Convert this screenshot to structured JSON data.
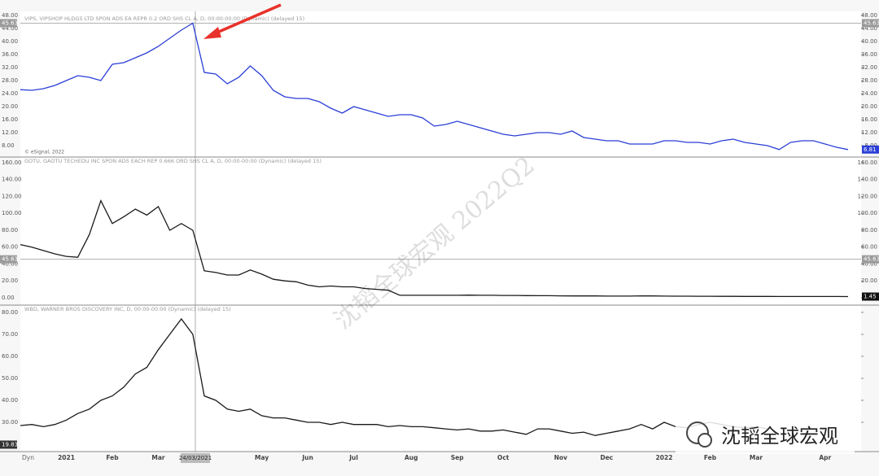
{
  "chart_data": {
    "type": "line",
    "watermark": "沈韬全球宏观 2022Q2",
    "logo_text": "沈韬全球宏观",
    "crosshair_label": "24/03/2021",
    "axis_mode": "Dyn",
    "categories": [
      null,
      null,
      null,
      null,
      "2021",
      null,
      null,
      null,
      "Feb",
      null,
      null,
      null,
      "Mar",
      null,
      null,
      null,
      "Apr",
      null,
      null,
      null,
      null,
      "May",
      null,
      null,
      null,
      "Jun",
      null,
      null,
      null,
      "Jul",
      null,
      null,
      null,
      null,
      "Aug",
      null,
      null,
      null,
      "Sep",
      null,
      null,
      null,
      "Oct",
      null,
      null,
      null,
      null,
      "Nov",
      null,
      null,
      null,
      "Dec",
      null,
      null,
      null,
      null,
      "2022",
      null,
      null,
      null,
      "Feb",
      null,
      null,
      null,
      "Mar",
      null,
      null,
      null,
      null,
      null,
      "Apr",
      null,
      null
    ],
    "panels": [
      {
        "title": "VIPS, VIPSHOP HLDGS LTD SPON ADS EA REPR 0.2 ORD SHS CL A, D, 00:00-00:00 (Dynamic) (delayed 15)",
        "copyright": "© eSignal, 2022",
        "color": "#2b3fd6",
        "values": [
          25.2,
          25,
          25.5,
          26.5,
          28,
          29.5,
          29,
          28,
          33,
          33.5,
          35,
          36.5,
          38.5,
          41,
          43.5,
          45.63,
          30.5,
          30,
          27,
          29,
          32.5,
          29.5,
          25,
          23,
          22.5,
          22.5,
          21.5,
          19.5,
          18,
          20,
          19,
          18,
          17,
          17.5,
          17.5,
          16.5,
          14,
          14.5,
          15.5,
          14.5,
          13.5,
          12.5,
          11.5,
          11,
          11.5,
          12,
          12,
          11.5,
          12.5,
          10.5,
          10,
          9.5,
          9.5,
          8.5,
          8.5,
          8.5,
          9.5,
          9.5,
          9,
          9,
          8.5,
          9.5,
          10,
          9,
          8.5,
          8,
          6.8,
          9,
          9.5,
          9.5,
          8.5,
          7.5,
          6.81
        ],
        "ylim": [
          4.5,
          48.25
        ],
        "yticks": [
          {
            "value": 8,
            "label": "8.00"
          },
          {
            "value": 12,
            "label": "12.00"
          },
          {
            "value": 16,
            "label": "16.00"
          },
          {
            "value": 20,
            "label": "20.00"
          },
          {
            "value": 24,
            "label": "24.00"
          },
          {
            "value": 28,
            "label": "28.00"
          },
          {
            "value": 32,
            "label": "32.00"
          },
          {
            "value": 36,
            "label": "36.00"
          },
          {
            "value": 40,
            "label": "40.00"
          },
          {
            "value": 44,
            "label": "44.00"
          },
          {
            "value": 48,
            "label": "48.00"
          }
        ],
        "tick_sides": "both",
        "price_markers": [
          {
            "value": 45.63,
            "label": "45.63",
            "side": "both",
            "color": "#9a9a9a",
            "line": true
          },
          {
            "value": 6.81,
            "label": "6.81",
            "side": "right",
            "color": "#2b3fd6",
            "line": false
          }
        ]
      },
      {
        "title": "GOTU, GAOTU TECHEDU INC SPON ADS EACH REP 0.666 ORD SHS CL A, D, 00:00-00:00 (Dynamic) (delayed 15)",
        "color": "#1a1a1a",
        "values": [
          63,
          60,
          56,
          52,
          49,
          48,
          75,
          115,
          88,
          96,
          105,
          98,
          108,
          80,
          88,
          80,
          32,
          30,
          27,
          27,
          33,
          28,
          22,
          20,
          19,
          15,
          13,
          14,
          13,
          13,
          11,
          10,
          9,
          3,
          3,
          3,
          3,
          3,
          3,
          3.2,
          3,
          3,
          2.8,
          2.8,
          2.6,
          2.5,
          2.5,
          2.3,
          2.2,
          2.2,
          2.2,
          2,
          2,
          2,
          2.3,
          2.2,
          2,
          1.9,
          1.9,
          1.8,
          1.8,
          1.7,
          1.7,
          1.6,
          1.6,
          1.6,
          1.5,
          1.5,
          1.5,
          1.5,
          1.5,
          1.5,
          1.45
        ],
        "ylim": [
          -8.67,
          166.7
        ],
        "yticks": [
          {
            "value": 0,
            "label": "0.00"
          },
          {
            "value": 20,
            "label": "20.00"
          },
          {
            "value": 40,
            "label": "40.00"
          },
          {
            "value": 60,
            "label": "60.00"
          },
          {
            "value": 80,
            "label": "80.00"
          },
          {
            "value": 100,
            "label": "100.00"
          },
          {
            "value": 120,
            "label": "120.00"
          },
          {
            "value": 140,
            "label": "140.00"
          },
          {
            "value": 160,
            "label": "160.00"
          }
        ],
        "tick_sides": "both",
        "price_markers": [
          {
            "value": 45.63,
            "label": "45.63",
            "side": "both",
            "color": "#9a9a9a",
            "line": true
          },
          {
            "value": 1.45,
            "label": "1.45",
            "side": "right",
            "color": "#111111",
            "line": false
          }
        ]
      },
      {
        "title": "WBD, WARNER BROS DISCOVERY INC, D, 00:00-00:00 (Dynamic) (delayed 15)",
        "color": "#1a1a1a",
        "values": [
          28.5,
          29,
          28,
          29,
          31,
          34,
          36,
          40,
          42,
          46,
          52,
          55,
          63,
          70,
          77,
          70,
          42,
          40,
          36,
          35,
          36,
          33,
          32,
          32,
          31,
          30,
          30,
          29,
          30,
          29,
          29,
          29,
          28,
          28.5,
          28,
          28,
          27.5,
          27,
          26.5,
          27,
          26,
          26,
          26.5,
          25.5,
          24.5,
          27,
          27,
          26,
          25,
          25.5,
          24,
          25,
          26,
          27,
          29,
          27,
          30,
          28,
          27.5,
          29,
          30,
          29,
          28,
          27.5,
          28,
          27,
          null,
          null,
          null,
          null,
          null,
          null,
          null
        ],
        "ylim": [
          16.67,
          83.3
        ],
        "yticks": [
          {
            "value": 30,
            "label": "30.00"
          },
          {
            "value": 40,
            "label": "40.00"
          },
          {
            "value": 50,
            "label": "50.00"
          },
          {
            "value": 60,
            "label": "60.00"
          },
          {
            "value": 70,
            "label": "70.00"
          },
          {
            "value": 80,
            "label": "80.00"
          }
        ],
        "tick_sides": "left",
        "price_markers": [
          {
            "value": 19.83,
            "label": "19.83",
            "side": "left",
            "color": "#333333",
            "line": false
          }
        ]
      }
    ]
  }
}
